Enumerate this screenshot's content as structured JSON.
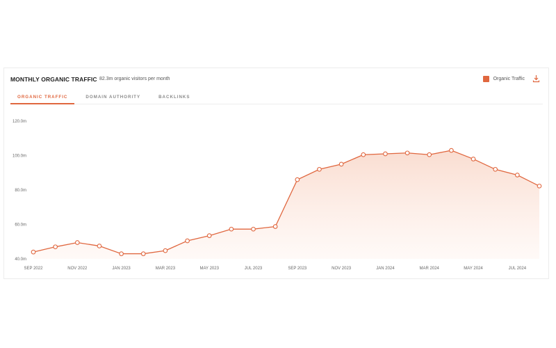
{
  "header": {
    "title": "MONTHLY ORGANIC TRAFFIC",
    "subtitle": "82.3m organic visitors per month",
    "legend_label": "Organic Traffic",
    "download_icon": "download-icon"
  },
  "tabs": [
    {
      "label": "ORGANIC TRAFFIC",
      "active": true
    },
    {
      "label": "DOMAIN AUTHORITY",
      "active": false
    },
    {
      "label": "BACKLINKS",
      "active": false
    }
  ],
  "colors": {
    "accent": "#e0673f",
    "fill_top": "#f9d9cb",
    "fill_bottom": "#fff6f2"
  },
  "chart_data": {
    "type": "area",
    "x": [
      "SEP 2022",
      "OCT 2022",
      "NOV 2022",
      "DEC 2022",
      "JAN 2023",
      "FEB 2023",
      "MAR 2023",
      "APR 2023",
      "MAY 2023",
      "JUN 2023",
      "JUL 2023",
      "AUG 2023",
      "SEP 2023",
      "OCT 2023",
      "NOV 2023",
      "DEC 2023",
      "JAN 2024",
      "FEB 2024",
      "MAR 2024",
      "APR 2024",
      "MAY 2024",
      "JUN 2024",
      "JUL 2024",
      "AUG 2024"
    ],
    "x_tick_labels": [
      "SEP 2022",
      "NOV 2022",
      "JAN 2023",
      "MAR 2023",
      "MAY 2023",
      "JUL 2023",
      "SEP 2023",
      "NOV 2023",
      "JAN 2024",
      "MAR 2024",
      "MAY 2024",
      "JUL 2024"
    ],
    "series": [
      {
        "name": "Organic Traffic",
        "values": [
          44.0,
          47.0,
          49.5,
          47.5,
          43.0,
          43.0,
          44.8,
          50.5,
          53.5,
          57.3,
          57.3,
          58.8,
          86.0,
          92.0,
          95.0,
          100.5,
          101.0,
          101.5,
          100.5,
          103.0,
          98.0,
          92.0,
          88.7,
          82.3
        ]
      }
    ],
    "y_ticks": [
      "40.0m",
      "60.0m",
      "80.0m",
      "100.0m",
      "120.0m"
    ],
    "ylim": [
      40,
      120
    ],
    "y_unit": "m",
    "grid": false,
    "legend_position": "top-right"
  }
}
